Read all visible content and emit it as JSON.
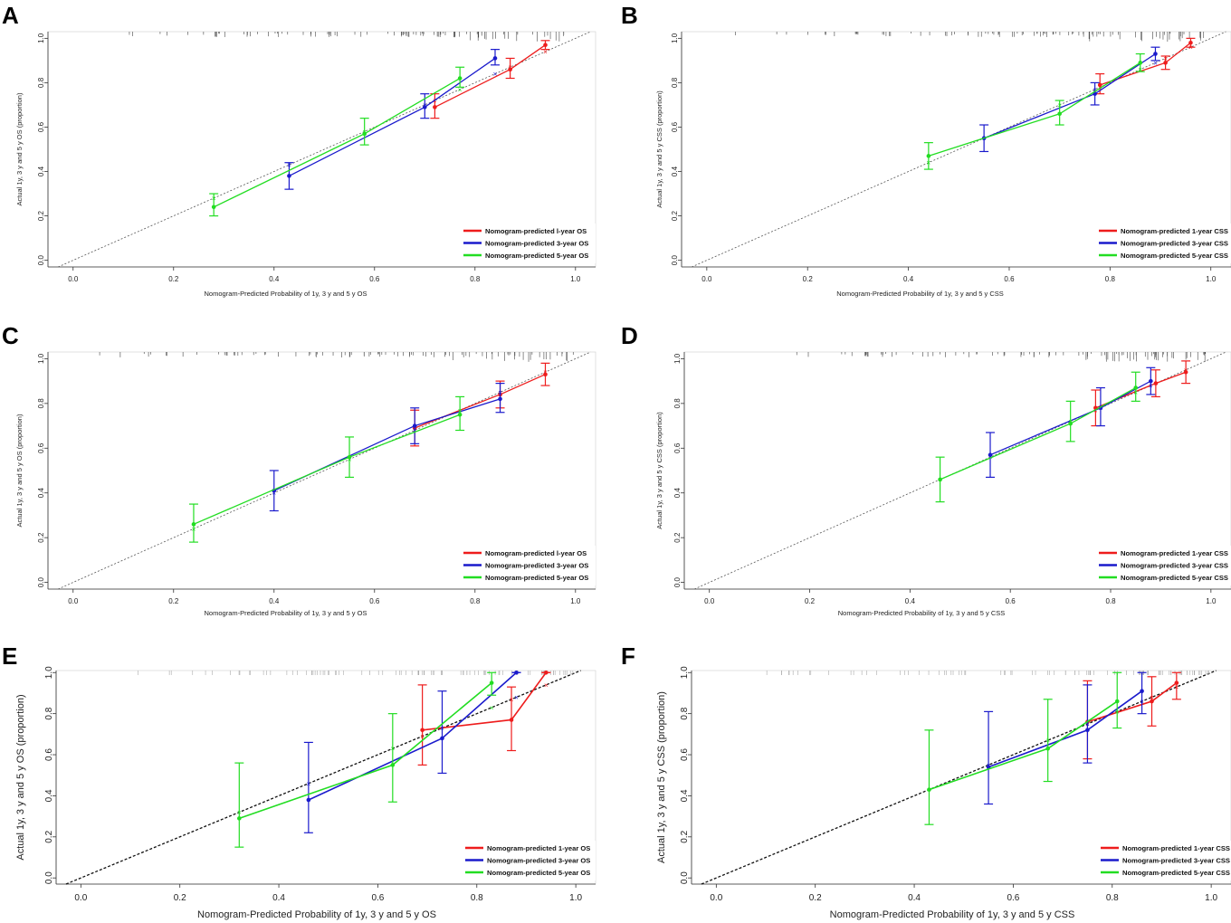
{
  "colors": {
    "red": "#ee1c1c",
    "blue": "#1a1acc",
    "green": "#22dd22",
    "axis": "#333333",
    "diag": "#555555"
  },
  "chart_data": [
    {
      "panel": "A",
      "type": "line",
      "xlabel": "Nomogram-Predicted Probability of 1y, 3 y and 5 y OS",
      "ylabel": "Actual 1y, 3 y and 5 y OS (proportion)",
      "xlim": [
        -0.05,
        1.04
      ],
      "ylim": [
        -0.03,
        1.03
      ],
      "xticks": [
        "0.0",
        "0.2",
        "0.4",
        "0.6",
        "0.8",
        "1.0"
      ],
      "yticks": [
        "0.0",
        "0.2",
        "0.4",
        "0.6",
        "0.8",
        "1.0"
      ],
      "legend": [
        "Nomogram-predicted l-year OS",
        "Nomogram-predicted 3-year OS",
        "Nomogram-predicted 5-year OS"
      ],
      "legend_position": "bottom-right",
      "series": [
        {
          "name": "1-year",
          "color": "red",
          "points": [
            [
              0.72,
              0.69,
              0.64,
              0.75
            ],
            [
              0.87,
              0.86,
              0.82,
              0.91
            ],
            [
              0.94,
              0.97,
              0.95,
              0.99
            ]
          ]
        },
        {
          "name": "3-year",
          "color": "blue",
          "points": [
            [
              0.43,
              0.38,
              0.32,
              0.44
            ],
            [
              0.7,
              0.69,
              0.64,
              0.75
            ],
            [
              0.84,
              0.91,
              0.88,
              0.95
            ]
          ]
        },
        {
          "name": "5-year",
          "color": "green",
          "points": [
            [
              0.28,
              0.24,
              0.2,
              0.3
            ],
            [
              0.58,
              0.57,
              0.52,
              0.64
            ],
            [
              0.77,
              0.82,
              0.78,
              0.87
            ]
          ]
        }
      ]
    },
    {
      "panel": "B",
      "type": "line",
      "xlabel": "Nomogram-Predicted Probability of 1y, 3 y and 5 y CSS",
      "ylabel": "Actual 1y, 3 y and 5 y CSS (proportion)",
      "xlim": [
        -0.05,
        1.04
      ],
      "ylim": [
        -0.03,
        1.03
      ],
      "xticks": [
        "0.0",
        "0.2",
        "0.4",
        "0.6",
        "0.8",
        "1.0"
      ],
      "yticks": [
        "0.0",
        "0.2",
        "0.4",
        "0.6",
        "0.8",
        "1.0"
      ],
      "legend": [
        "Nomogram-predicted 1-year CSS",
        "Nomogram-predicted 3-year CSS",
        "Nomogram-predicted 5-year CSS"
      ],
      "legend_position": "bottom-right",
      "series": [
        {
          "name": "1-year",
          "color": "red",
          "points": [
            [
              0.78,
              0.79,
              0.75,
              0.84
            ],
            [
              0.91,
              0.89,
              0.86,
              0.92
            ],
            [
              0.96,
              0.98,
              0.96,
              1.0
            ]
          ]
        },
        {
          "name": "3-year",
          "color": "blue",
          "points": [
            [
              0.55,
              0.55,
              0.49,
              0.61
            ],
            [
              0.77,
              0.75,
              0.7,
              0.8
            ],
            [
              0.89,
              0.93,
              0.9,
              0.96
            ]
          ]
        },
        {
          "name": "5-year",
          "color": "green",
          "points": [
            [
              0.44,
              0.47,
              0.41,
              0.53
            ],
            [
              0.7,
              0.66,
              0.61,
              0.72
            ],
            [
              0.86,
              0.89,
              0.85,
              0.93
            ]
          ]
        }
      ]
    },
    {
      "panel": "C",
      "type": "line",
      "xlabel": "Nomogram-Predicted Probability of 1y, 3 y and 5 y OS",
      "ylabel": "Actual 1y, 3 y and 5 y OS (proportion)",
      "xlim": [
        -0.05,
        1.04
      ],
      "ylim": [
        -0.03,
        1.03
      ],
      "xticks": [
        "0.0",
        "0.2",
        "0.4",
        "0.6",
        "0.8",
        "1.0"
      ],
      "yticks": [
        "0.0",
        "0.2",
        "0.4",
        "0.6",
        "0.8",
        "1.0"
      ],
      "legend": [
        "Nomogram-predicted l-year OS",
        "Nomogram-predicted 3-year OS",
        "Nomogram-predicted 5-year OS"
      ],
      "legend_position": "bottom-right",
      "series": [
        {
          "name": "1-year",
          "color": "red",
          "points": [
            [
              0.68,
              0.69,
              0.61,
              0.77
            ],
            [
              0.85,
              0.84,
              0.78,
              0.9
            ],
            [
              0.94,
              0.93,
              0.88,
              0.98
            ]
          ]
        },
        {
          "name": "3-year",
          "color": "blue",
          "points": [
            [
              0.4,
              0.41,
              0.32,
              0.5
            ],
            [
              0.68,
              0.7,
              0.62,
              0.78
            ],
            [
              0.85,
              0.82,
              0.76,
              0.89
            ]
          ]
        },
        {
          "name": "5-year",
          "color": "green",
          "points": [
            [
              0.24,
              0.26,
              0.18,
              0.35
            ],
            [
              0.55,
              0.56,
              0.47,
              0.65
            ],
            [
              0.77,
              0.75,
              0.68,
              0.83
            ]
          ]
        }
      ]
    },
    {
      "panel": "D",
      "type": "line",
      "xlabel": "Nomogram-Predicted Probability of 1y, 3 y and 5 y CSS",
      "ylabel": "Actual 1y, 3 y and 5 y CSS (proportion)",
      "xlim": [
        -0.05,
        1.04
      ],
      "ylim": [
        -0.03,
        1.03
      ],
      "xticks": [
        "0.0",
        "0.2",
        "0.4",
        "0.6",
        "0.8",
        "1.0"
      ],
      "yticks": [
        "0.0",
        "0.2",
        "0.4",
        "0.6",
        "0.8",
        "1.0"
      ],
      "legend": [
        "Nomogram-predicted 1-year CSS",
        "Nomogram-predicted 3-year CSS",
        "Nomogram-predicted 5-year CSS"
      ],
      "legend_position": "bottom-right",
      "series": [
        {
          "name": "1-year",
          "color": "red",
          "points": [
            [
              0.77,
              0.78,
              0.7,
              0.86
            ],
            [
              0.89,
              0.89,
              0.83,
              0.95
            ],
            [
              0.95,
              0.94,
              0.89,
              0.99
            ]
          ]
        },
        {
          "name": "3-year",
          "color": "blue",
          "points": [
            [
              0.56,
              0.57,
              0.47,
              0.67
            ],
            [
              0.78,
              0.78,
              0.7,
              0.87
            ],
            [
              0.88,
              0.9,
              0.84,
              0.96
            ]
          ]
        },
        {
          "name": "5-year",
          "color": "green",
          "points": [
            [
              0.46,
              0.46,
              0.36,
              0.56
            ],
            [
              0.72,
              0.71,
              0.63,
              0.81
            ],
            [
              0.85,
              0.87,
              0.81,
              0.94
            ]
          ]
        }
      ]
    },
    {
      "panel": "E",
      "type": "line",
      "xlabel": "Nomogram-Predicted Probability of 1y, 3 y and 5 y OS",
      "ylabel": "Actual 1y, 3 y and 5 y OS (proportion)",
      "xlim": [
        -0.05,
        1.04
      ],
      "ylim": [
        -0.03,
        1.01
      ],
      "xticks": [
        "0.0",
        "0.2",
        "0.4",
        "0.6",
        "0.8",
        "1.0"
      ],
      "yticks": [
        "0.0",
        "0.2",
        "0.4",
        "0.6",
        "0.8",
        "1.0"
      ],
      "legend": [
        "Nomogram-predicted 1-year OS",
        "Nomogram-predicted 3-year OS",
        "Nomogram-predicted 5-year OS"
      ],
      "legend_position": "bottom-right",
      "series": [
        {
          "name": "1-year",
          "color": "red",
          "points": [
            [
              0.69,
              0.72,
              0.55,
              0.94
            ],
            [
              0.87,
              0.77,
              0.62,
              0.93
            ],
            [
              0.94,
              1.0,
              1.0,
              1.0
            ]
          ]
        },
        {
          "name": "3-year",
          "color": "blue",
          "points": [
            [
              0.46,
              0.38,
              0.22,
              0.66
            ],
            [
              0.73,
              0.68,
              0.51,
              0.91
            ],
            [
              0.88,
              1.0,
              1.0,
              1.0
            ]
          ]
        },
        {
          "name": "5-year",
          "color": "green",
          "points": [
            [
              0.32,
              0.29,
              0.15,
              0.56
            ],
            [
              0.63,
              0.55,
              0.37,
              0.8
            ],
            [
              0.83,
              0.95,
              0.89,
              1.0
            ]
          ]
        }
      ]
    },
    {
      "panel": "F",
      "type": "line",
      "xlabel": "Nomogram-Predicted Probability of 1y, 3 y and 5 y CSS",
      "ylabel": "Actual 1y, 3 y and 5 y CSS (proportion)",
      "xlim": [
        -0.05,
        1.04
      ],
      "ylim": [
        -0.03,
        1.01
      ],
      "xticks": [
        "0.0",
        "0.2",
        "0.4",
        "0.6",
        "0.8",
        "1.0"
      ],
      "yticks": [
        "0.0",
        "0.2",
        "0.4",
        "0.6",
        "0.8",
        "1.0"
      ],
      "legend": [
        "Nomogram-predicted 1-year CSS",
        "Nomogram-predicted 3-year CSS",
        "Nomogram-predicted 5-year CSS"
      ],
      "legend_position": "bottom-right",
      "series": [
        {
          "name": "1-year",
          "color": "red",
          "points": [
            [
              0.75,
              0.76,
              0.58,
              0.96
            ],
            [
              0.88,
              0.86,
              0.74,
              0.98
            ],
            [
              0.93,
              0.95,
              0.87,
              1.0
            ]
          ]
        },
        {
          "name": "3-year",
          "color": "blue",
          "points": [
            [
              0.55,
              0.54,
              0.36,
              0.81
            ],
            [
              0.75,
              0.72,
              0.56,
              0.94
            ],
            [
              0.86,
              0.91,
              0.8,
              1.0
            ]
          ]
        },
        {
          "name": "5-year",
          "color": "green",
          "points": [
            [
              0.43,
              0.43,
              0.26,
              0.72
            ],
            [
              0.67,
              0.63,
              0.47,
              0.87
            ],
            [
              0.81,
              0.86,
              0.73,
              1.0
            ]
          ]
        }
      ]
    }
  ]
}
